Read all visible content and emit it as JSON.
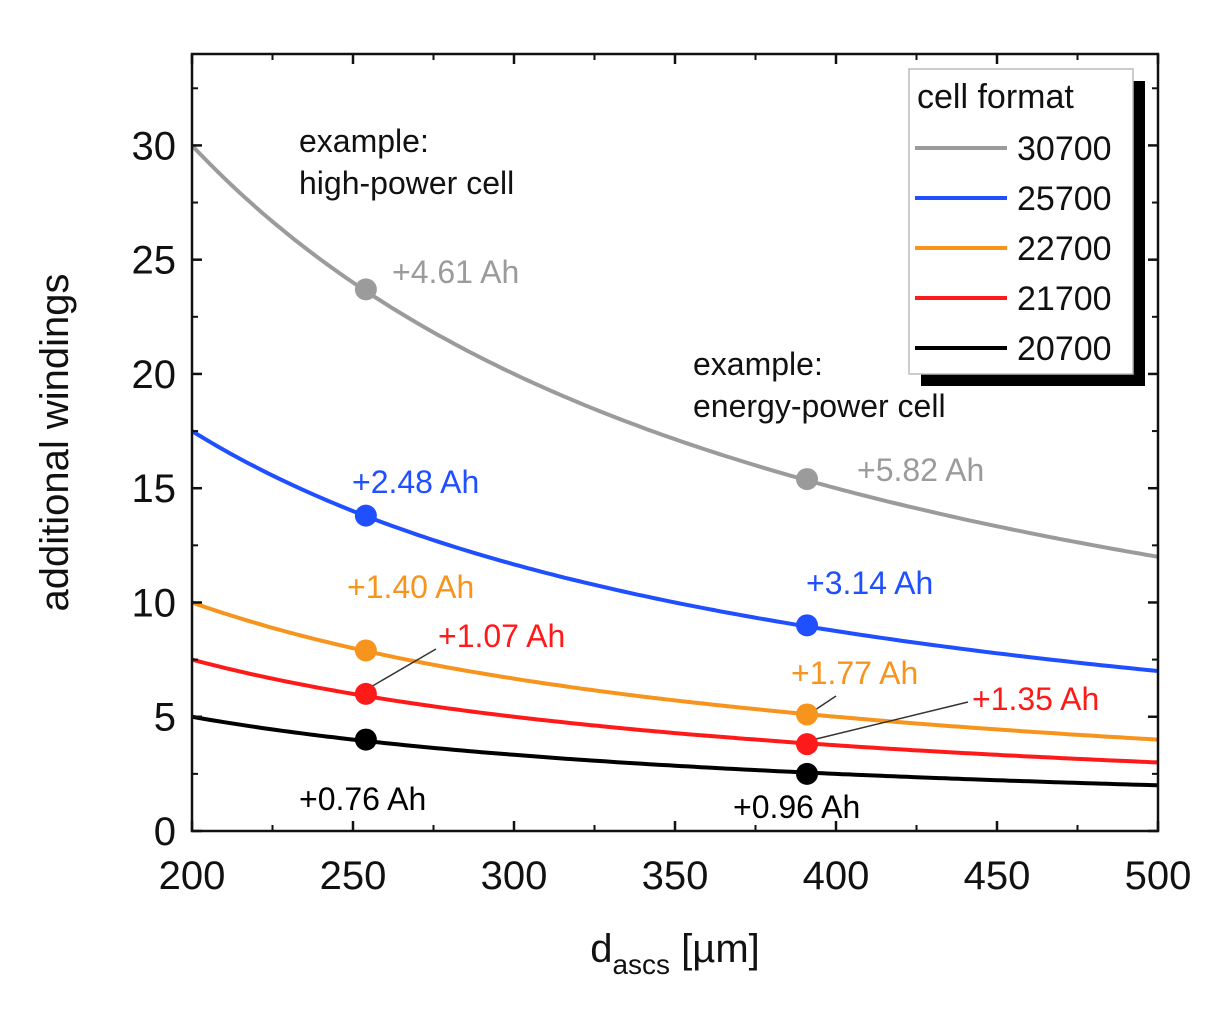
{
  "chart_data": {
    "type": "line",
    "x_range": [
      200,
      500
    ],
    "y_range": [
      0,
      34
    ],
    "x_ticks": [
      200,
      250,
      300,
      350,
      400,
      450,
      500
    ],
    "y_ticks": [
      0,
      5,
      10,
      15,
      20,
      25,
      30
    ],
    "x_minor_ticks": [
      225,
      275,
      325,
      375,
      425,
      475
    ],
    "y_minor_ticks": [
      2.5,
      7.5,
      12.5,
      17.5,
      22.5,
      27.5,
      32.5
    ],
    "xlabel": {
      "main": "d",
      "sub": "ascs",
      "unit": " [µm]"
    },
    "ylabel": "additional windings",
    "legend": {
      "title": "cell format",
      "position": "top-right"
    },
    "series": [
      {
        "name": "30700",
        "color": "#9b9b9b",
        "k": 6000,
        "points": [
          {
            "x": 254,
            "y": 23.7,
            "label": "+4.61 Ah"
          },
          {
            "x": 391,
            "y": 15.4,
            "label": "+5.82 Ah"
          }
        ]
      },
      {
        "name": "25700",
        "color": "#1f4fff",
        "k": 3500,
        "points": [
          {
            "x": 254,
            "y": 13.8,
            "label": "+2.48 Ah"
          },
          {
            "x": 391,
            "y": 9.0,
            "label": "+3.14 Ah"
          }
        ]
      },
      {
        "name": "22700",
        "color": "#f7941d",
        "k": 2000,
        "points": [
          {
            "x": 254,
            "y": 7.9,
            "label": "+1.40 Ah"
          },
          {
            "x": 391,
            "y": 5.1,
            "label": "+1.77 Ah"
          }
        ]
      },
      {
        "name": "21700",
        "color": "#ff1a1a",
        "k": 1500,
        "points": [
          {
            "x": 254,
            "y": 6.0,
            "label": "+1.07 Ah"
          },
          {
            "x": 391,
            "y": 3.8,
            "label": "+1.35 Ah"
          }
        ]
      },
      {
        "name": "20700",
        "color": "#000000",
        "k": 1000,
        "points": [
          {
            "x": 254,
            "y": 4.0,
            "label": "+0.76 Ah"
          },
          {
            "x": 391,
            "y": 2.5,
            "label": "+0.96 Ah"
          }
        ]
      }
    ],
    "annotations": [
      {
        "lines": [
          "example:",
          "high-power cell"
        ]
      },
      {
        "lines": [
          "example:",
          "energy-power cell"
        ]
      }
    ]
  }
}
